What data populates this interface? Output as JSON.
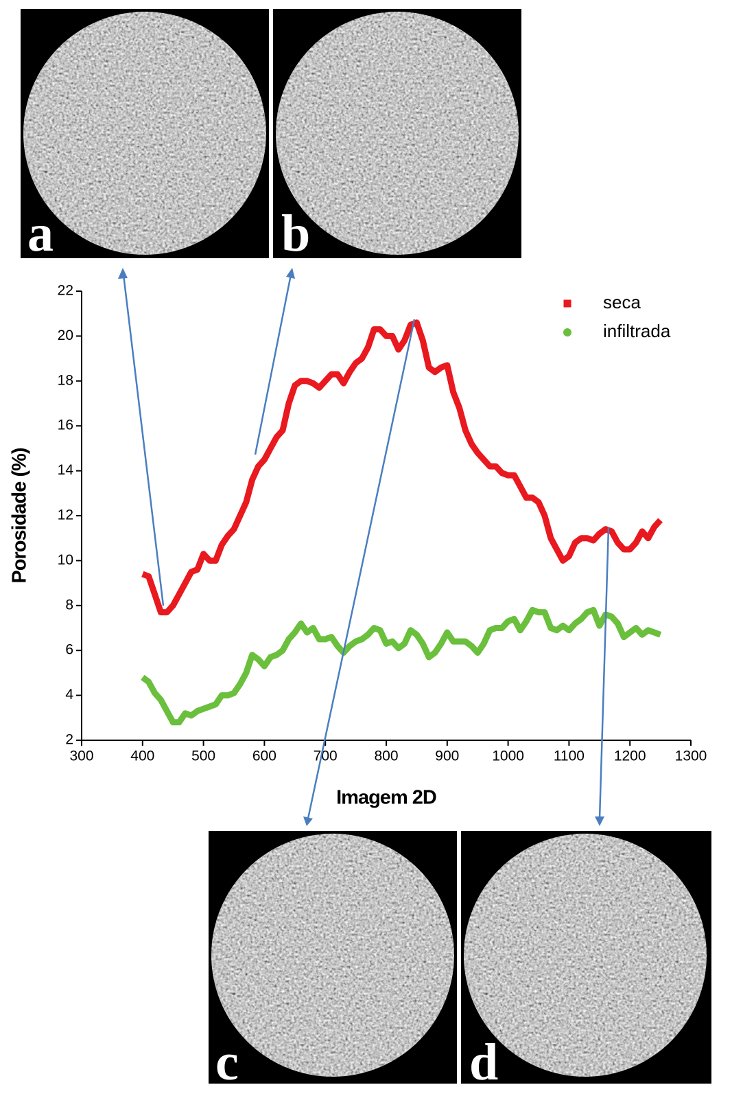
{
  "chart_data": {
    "type": "line",
    "xlabel": "Imagem 2D",
    "ylabel": "Porosidade (%)",
    "x": [
      400,
      410,
      420,
      430,
      440,
      450,
      460,
      470,
      480,
      490,
      500,
      510,
      520,
      530,
      540,
      550,
      560,
      570,
      580,
      590,
      600,
      610,
      620,
      630,
      640,
      650,
      660,
      670,
      680,
      690,
      700,
      710,
      720,
      730,
      740,
      750,
      760,
      770,
      780,
      790,
      800,
      810,
      820,
      830,
      840,
      850,
      860,
      870,
      880,
      890,
      900,
      910,
      920,
      930,
      940,
      950,
      960,
      970,
      980,
      990,
      1000,
      1010,
      1020,
      1030,
      1040,
      1050,
      1060,
      1070,
      1080,
      1090,
      1100,
      1110,
      1120,
      1130,
      1140,
      1150,
      1160,
      1170,
      1180,
      1190,
      1200,
      1210,
      1220,
      1230,
      1240,
      1250
    ],
    "series": [
      {
        "name": "seca",
        "color": "#e8191f",
        "marker": "square",
        "values": [
          9.4,
          9.3,
          8.5,
          7.7,
          7.7,
          8.0,
          8.5,
          9.0,
          9.5,
          9.6,
          10.3,
          10.0,
          10.0,
          10.7,
          11.1,
          11.4,
          12.0,
          12.6,
          13.6,
          14.2,
          14.5,
          15.0,
          15.5,
          15.8,
          17.0,
          17.8,
          18.0,
          18.0,
          17.9,
          17.7,
          18.0,
          18.3,
          18.3,
          17.9,
          18.4,
          18.8,
          19.0,
          19.5,
          20.3,
          20.3,
          20.0,
          20.0,
          19.4,
          19.8,
          20.5,
          20.6,
          19.8,
          18.6,
          18.4,
          18.6,
          18.7,
          17.5,
          16.8,
          15.8,
          15.2,
          14.8,
          14.5,
          14.2,
          14.2,
          13.9,
          13.8,
          13.8,
          13.3,
          12.8,
          12.8,
          12.6,
          12.0,
          11.0,
          10.5,
          10.0,
          10.2,
          10.8,
          11.0,
          11.0,
          10.9,
          11.2,
          11.4,
          11.3,
          10.8,
          10.5,
          10.5,
          10.8,
          11.3,
          11.0,
          11.5,
          11.8
        ]
      },
      {
        "name": "infiltrada",
        "color": "#6abf3c",
        "marker": "circle",
        "values": [
          4.8,
          4.6,
          4.1,
          3.8,
          3.3,
          2.8,
          2.8,
          3.2,
          3.1,
          3.3,
          3.4,
          3.5,
          3.6,
          4.0,
          4.0,
          4.1,
          4.5,
          5.0,
          5.8,
          5.6,
          5.3,
          5.7,
          5.8,
          6.0,
          6.5,
          6.8,
          7.2,
          6.8,
          7.0,
          6.5,
          6.5,
          6.6,
          6.2,
          5.9,
          6.2,
          6.4,
          6.5,
          6.7,
          7.0,
          6.9,
          6.3,
          6.4,
          6.1,
          6.3,
          6.9,
          6.7,
          6.3,
          5.7,
          5.9,
          6.3,
          6.8,
          6.4,
          6.4,
          6.4,
          6.2,
          5.9,
          6.3,
          6.9,
          7.0,
          7.0,
          7.3,
          7.4,
          6.9,
          7.3,
          7.8,
          7.7,
          7.7,
          7.0,
          6.9,
          7.1,
          6.9,
          7.2,
          7.4,
          7.7,
          7.8,
          7.1,
          7.6,
          7.5,
          7.2,
          6.6,
          6.8,
          7.0,
          6.7,
          6.9,
          6.8,
          6.7
        ]
      }
    ],
    "xlim": [
      300,
      1300
    ],
    "xticks": [
      300,
      400,
      500,
      600,
      700,
      800,
      900,
      1000,
      1100,
      1200,
      1300
    ],
    "ylim": [
      2,
      22
    ],
    "yticks": [
      2,
      4,
      6,
      8,
      10,
      12,
      14,
      16,
      18,
      20,
      22
    ],
    "legend": "top-right",
    "grid": false
  },
  "panels": [
    {
      "label": "a"
    },
    {
      "label": "b"
    },
    {
      "label": "c"
    },
    {
      "label": "d"
    }
  ]
}
